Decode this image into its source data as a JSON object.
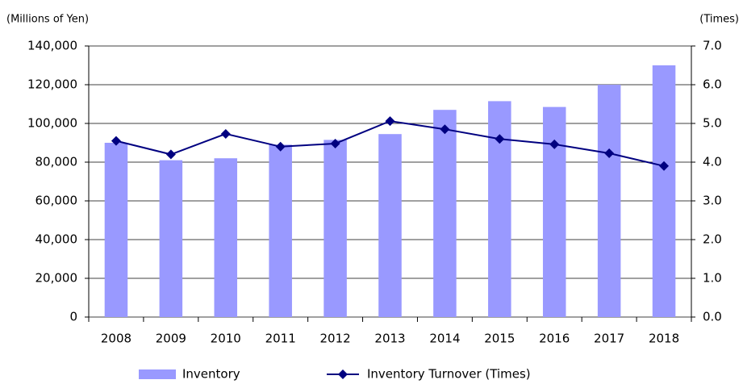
{
  "chart_data": {
    "type": "bar_line",
    "y_label": "(Millions of Yen)",
    "y2_label": "(Times)",
    "categories": [
      "2008",
      "2009",
      "2010",
      "2011",
      "2012",
      "2013",
      "2014",
      "2015",
      "2016",
      "2017",
      "2018"
    ],
    "series": [
      {
        "name": "Inventory",
        "type": "bar",
        "color": "#9999ff",
        "axis": "y",
        "values": [
          90000,
          81000,
          82000,
          89000,
          91500,
          94500,
          107000,
          111500,
          108500,
          120000,
          130000
        ]
      },
      {
        "name": "Inventory Turnover (Times)",
        "type": "line",
        "color": "#000080",
        "axis": "y2",
        "values": [
          4.55,
          4.2,
          4.73,
          4.4,
          4.48,
          5.06,
          4.85,
          4.6,
          4.46,
          4.23,
          3.9
        ]
      }
    ],
    "ylim": [
      0,
      140000
    ],
    "yticks": [
      0,
      {
        "value": 20000,
        "label": "20,000"
      },
      {
        "value": 40000,
        "label": "40,000"
      },
      {
        "value": 60000,
        "label": "60,000"
      },
      {
        "value": 80000,
        "label": "80,000"
      },
      {
        "value": 100000,
        "label": "100,000"
      },
      {
        "value": 120000,
        "label": "120,000"
      },
      {
        "value": 140000,
        "label": "140,000"
      }
    ],
    "y2lim": [
      0,
      7
    ],
    "y2ticks": [
      {
        "value": 0,
        "label": "0.0"
      },
      {
        "value": 1,
        "label": "1.0"
      },
      {
        "value": 2,
        "label": "2.0"
      },
      {
        "value": 3,
        "label": "3.0"
      },
      {
        "value": 4,
        "label": "4.0"
      },
      {
        "value": 5,
        "label": "5.0"
      },
      {
        "value": 6,
        "label": "6.0"
      },
      {
        "value": 7,
        "label": "7.0"
      }
    ],
    "grid": true,
    "legend": "bottom"
  }
}
